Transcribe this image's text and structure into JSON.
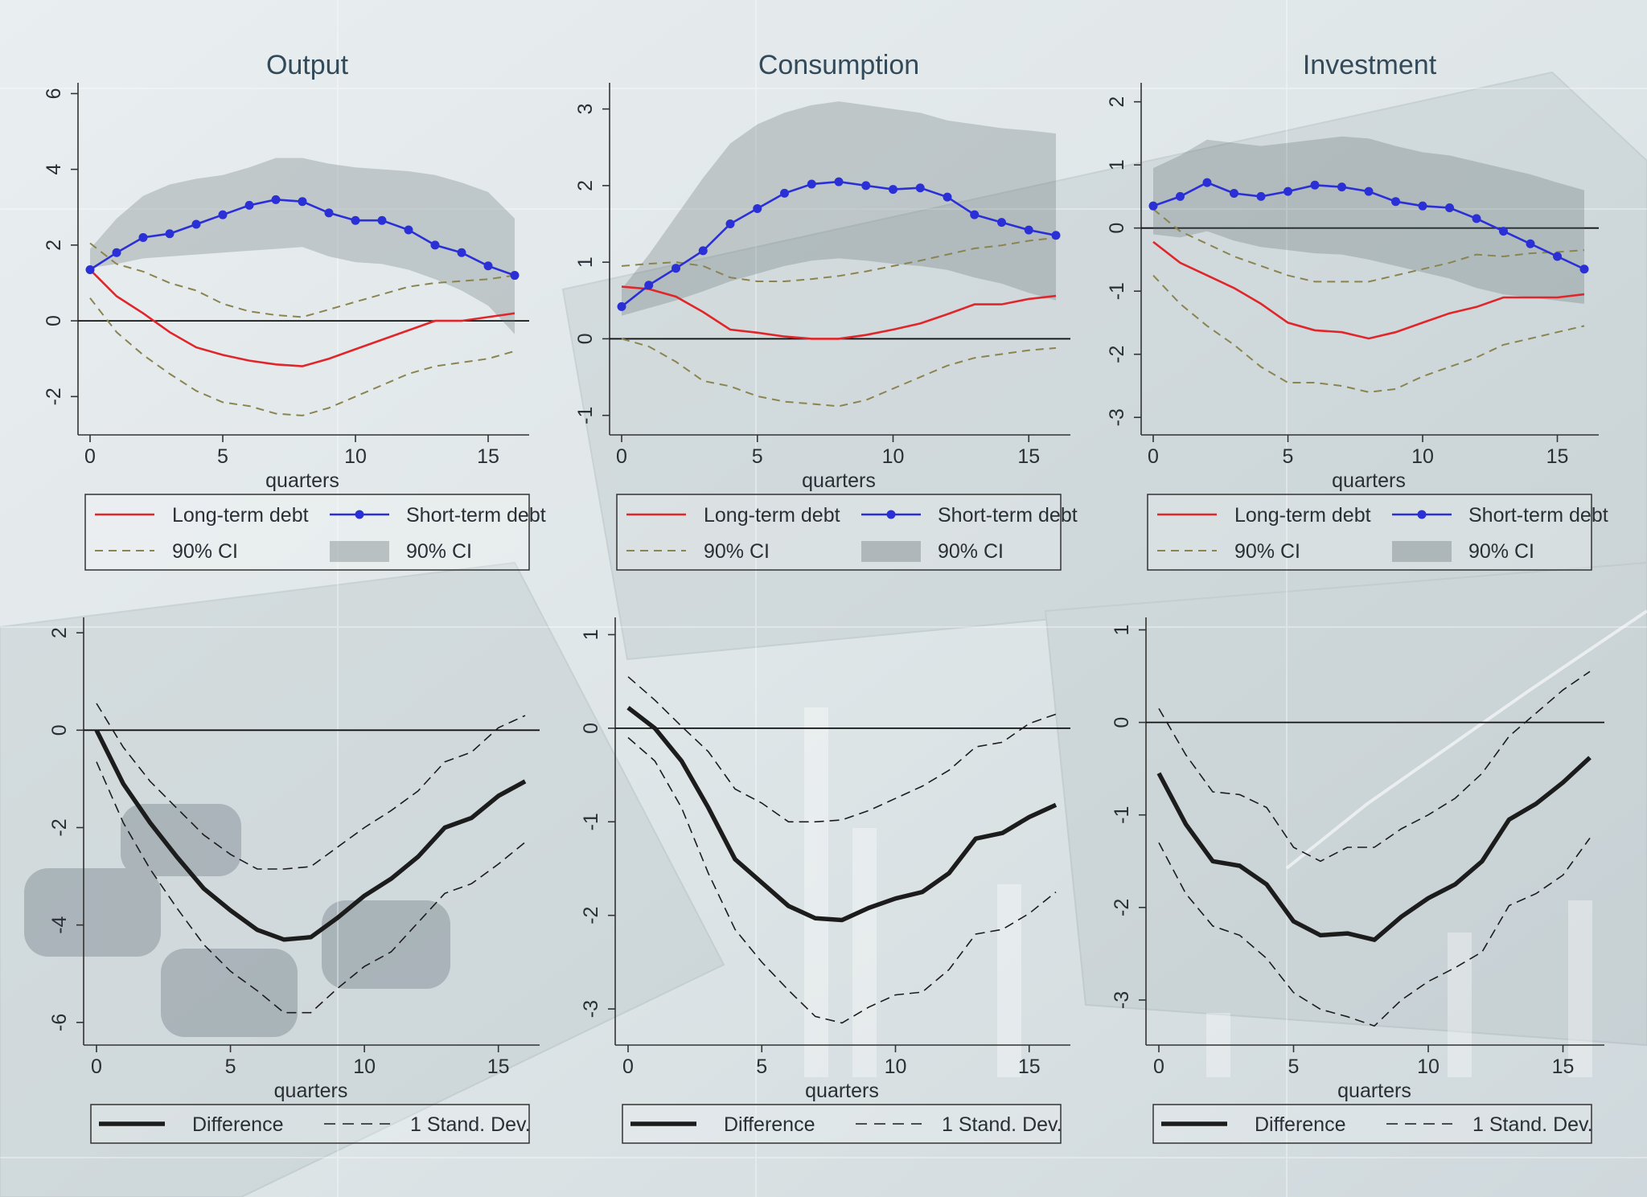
{
  "colors": {
    "long_term": "#e0262a",
    "short_term": "#2a2fd6",
    "ci_line": "#8a8450",
    "band": "#5f6b6e",
    "difference": "#1c1c1c",
    "sd": "#1c1c1c",
    "zero": "#111111"
  },
  "legend_top": {
    "long": "Long-term debt",
    "short": "Short-term debt",
    "ci_line": "90% CI",
    "ci_band": "90% CI"
  },
  "legend_bottom": {
    "diff": "Difference",
    "sd": "1 Stand. Dev."
  },
  "chart_data": [
    {
      "type": "line",
      "panel": "top",
      "title": "Output",
      "xlabel": "quarters",
      "xlim": [
        0,
        16
      ],
      "ylim": [
        -2.8,
        6.2
      ],
      "xticks": [
        0,
        5,
        10,
        15
      ],
      "yticks": [
        -2,
        0,
        2,
        4,
        6
      ],
      "x": [
        0,
        1,
        2,
        3,
        4,
        5,
        6,
        7,
        8,
        9,
        10,
        11,
        12,
        13,
        14,
        15,
        16
      ],
      "series": [
        {
          "name": "Short-term debt",
          "values": [
            1.35,
            1.8,
            2.2,
            2.3,
            2.55,
            2.8,
            3.05,
            3.2,
            3.15,
            2.85,
            2.65,
            2.65,
            2.4,
            2.0,
            1.8,
            1.45,
            1.2
          ]
        },
        {
          "name": "Long-term debt",
          "values": [
            1.35,
            0.65,
            0.2,
            -0.3,
            -0.7,
            -0.9,
            -1.05,
            -1.15,
            -1.2,
            -1.0,
            -0.75,
            -0.5,
            -0.25,
            0.0,
            0.0,
            0.1,
            0.2
          ]
        },
        {
          "name": "90% CI lower",
          "values": [
            0.6,
            -0.3,
            -0.9,
            -1.4,
            -1.85,
            -2.15,
            -2.25,
            -2.45,
            -2.5,
            -2.3,
            -2.0,
            -1.7,
            -1.4,
            -1.2,
            -1.1,
            -1.0,
            -0.8
          ]
        },
        {
          "name": "90% CI upper",
          "values": [
            2.05,
            1.5,
            1.3,
            1.0,
            0.8,
            0.45,
            0.25,
            0.15,
            0.1,
            0.3,
            0.5,
            0.7,
            0.9,
            1.0,
            1.05,
            1.1,
            1.2
          ]
        },
        {
          "name": "Short-term 90% CI band upper",
          "values": [
            1.9,
            2.7,
            3.3,
            3.6,
            3.75,
            3.85,
            4.05,
            4.3,
            4.3,
            4.15,
            4.05,
            4.0,
            3.95,
            3.85,
            3.65,
            3.4,
            2.7
          ]
        },
        {
          "name": "Short-term 90% CI band lower",
          "values": [
            1.4,
            1.5,
            1.65,
            1.7,
            1.75,
            1.8,
            1.85,
            1.9,
            1.95,
            1.7,
            1.55,
            1.5,
            1.35,
            1.1,
            0.8,
            0.4,
            -0.35
          ]
        }
      ]
    },
    {
      "type": "line",
      "panel": "top",
      "title": "Consumption",
      "xlabel": "quarters",
      "xlim": [
        0,
        16
      ],
      "ylim": [
        -1.15,
        3.3
      ],
      "xticks": [
        0,
        5,
        10,
        15
      ],
      "yticks": [
        -1,
        0,
        1,
        2,
        3
      ],
      "x": [
        0,
        1,
        2,
        3,
        4,
        5,
        6,
        7,
        8,
        9,
        10,
        11,
        12,
        13,
        14,
        15,
        16
      ],
      "series": [
        {
          "name": "Short-term debt",
          "values": [
            0.42,
            0.7,
            0.92,
            1.15,
            1.5,
            1.7,
            1.9,
            2.02,
            2.05,
            2.0,
            1.95,
            1.97,
            1.85,
            1.62,
            1.52,
            1.42,
            1.35
          ]
        },
        {
          "name": "Long-term debt",
          "values": [
            0.68,
            0.65,
            0.55,
            0.35,
            0.12,
            0.08,
            0.03,
            0.0,
            0.0,
            0.05,
            0.12,
            0.2,
            0.32,
            0.45,
            0.45,
            0.52,
            0.56
          ]
        },
        {
          "name": "90% CI lower",
          "values": [
            0.0,
            -0.1,
            -0.3,
            -0.55,
            -0.62,
            -0.75,
            -0.82,
            -0.85,
            -0.88,
            -0.8,
            -0.65,
            -0.5,
            -0.35,
            -0.25,
            -0.2,
            -0.15,
            -0.12
          ]
        },
        {
          "name": "90% CI upper",
          "values": [
            0.95,
            0.98,
            1.0,
            0.95,
            0.8,
            0.75,
            0.75,
            0.78,
            0.82,
            0.88,
            0.95,
            1.02,
            1.1,
            1.18,
            1.22,
            1.28,
            1.32
          ]
        },
        {
          "name": "Short-term 90% CI band upper",
          "values": [
            0.65,
            1.1,
            1.6,
            2.1,
            2.55,
            2.8,
            2.95,
            3.05,
            3.1,
            3.05,
            3.0,
            2.95,
            2.85,
            2.8,
            2.75,
            2.72,
            2.68
          ]
        },
        {
          "name": "Short-term 90% CI band lower",
          "values": [
            0.3,
            0.4,
            0.5,
            0.62,
            0.75,
            0.85,
            0.95,
            1.02,
            1.05,
            1.02,
            0.98,
            0.95,
            0.9,
            0.8,
            0.72,
            0.6,
            0.5
          ]
        }
      ]
    },
    {
      "type": "line",
      "panel": "top",
      "title": "Investment",
      "xlabel": "quarters",
      "xlim": [
        0,
        16
      ],
      "ylim": [
        -3.15,
        2.25
      ],
      "xticks": [
        0,
        5,
        10,
        15
      ],
      "yticks": [
        -3,
        -2,
        -1,
        0,
        1,
        2
      ],
      "x": [
        0,
        1,
        2,
        3,
        4,
        5,
        6,
        7,
        8,
        9,
        10,
        11,
        12,
        13,
        14,
        15,
        16
      ],
      "series": [
        {
          "name": "Short-term debt",
          "values": [
            0.35,
            0.5,
            0.72,
            0.55,
            0.5,
            0.58,
            0.68,
            0.65,
            0.58,
            0.42,
            0.35,
            0.32,
            0.15,
            -0.05,
            -0.25,
            -0.45,
            -0.65
          ]
        },
        {
          "name": "Long-term debt",
          "values": [
            -0.22,
            -0.55,
            -0.75,
            -0.95,
            -1.2,
            -1.5,
            -1.62,
            -1.65,
            -1.75,
            -1.65,
            -1.5,
            -1.35,
            -1.25,
            -1.1,
            -1.1,
            -1.1,
            -1.05
          ]
        },
        {
          "name": "90% CI lower",
          "values": [
            -0.75,
            -1.2,
            -1.55,
            -1.85,
            -2.2,
            -2.45,
            -2.45,
            -2.5,
            -2.6,
            -2.55,
            -2.35,
            -2.2,
            -2.05,
            -1.85,
            -1.75,
            -1.65,
            -1.55
          ]
        },
        {
          "name": "90% CI upper",
          "values": [
            0.3,
            -0.05,
            -0.25,
            -0.45,
            -0.6,
            -0.75,
            -0.85,
            -0.85,
            -0.85,
            -0.75,
            -0.65,
            -0.55,
            -0.42,
            -0.45,
            -0.4,
            -0.38,
            -0.35
          ]
        },
        {
          "name": "Short-term 90% CI band upper",
          "values": [
            0.95,
            1.15,
            1.4,
            1.35,
            1.3,
            1.35,
            1.4,
            1.45,
            1.42,
            1.3,
            1.2,
            1.15,
            1.05,
            0.95,
            0.85,
            0.72,
            0.6
          ]
        },
        {
          "name": "Short-term 90% CI band lower",
          "values": [
            -0.1,
            -0.15,
            -0.05,
            -0.2,
            -0.3,
            -0.35,
            -0.4,
            -0.42,
            -0.5,
            -0.6,
            -0.7,
            -0.8,
            -0.95,
            -1.05,
            -1.1,
            -1.15,
            -1.2
          ]
        }
      ]
    },
    {
      "type": "line",
      "panel": "bottom",
      "title": "",
      "xlabel": "quarters",
      "xlim": [
        0,
        16
      ],
      "ylim": [
        -6.3,
        2.25
      ],
      "xticks": [
        0,
        5,
        10,
        15
      ],
      "yticks": [
        -6,
        -4,
        -2,
        0,
        2
      ],
      "x": [
        0,
        1,
        2,
        3,
        4,
        5,
        6,
        7,
        8,
        9,
        10,
        11,
        12,
        13,
        14,
        15,
        16
      ],
      "series": [
        {
          "name": "Difference",
          "values": [
            0.0,
            -1.1,
            -1.9,
            -2.6,
            -3.25,
            -3.7,
            -4.1,
            -4.3,
            -4.25,
            -3.85,
            -3.4,
            -3.05,
            -2.6,
            -2.0,
            -1.8,
            -1.35,
            -1.05
          ]
        },
        {
          "name": "1 Stand. Dev. upper",
          "values": [
            0.55,
            -0.35,
            -1.05,
            -1.6,
            -2.15,
            -2.55,
            -2.85,
            -2.85,
            -2.8,
            -2.4,
            -2.0,
            -1.65,
            -1.25,
            -0.65,
            -0.45,
            0.05,
            0.3
          ]
        },
        {
          "name": "1 Stand. Dev. lower",
          "values": [
            -0.65,
            -1.9,
            -2.85,
            -3.65,
            -4.4,
            -4.95,
            -5.35,
            -5.8,
            -5.8,
            -5.3,
            -4.85,
            -4.55,
            -3.95,
            -3.35,
            -3.15,
            -2.75,
            -2.3
          ]
        }
      ]
    },
    {
      "type": "line",
      "panel": "bottom",
      "title": "",
      "xlabel": "quarters",
      "xlim": [
        0,
        16
      ],
      "ylim": [
        -3.3,
        1.15
      ],
      "xticks": [
        0,
        5,
        10,
        15
      ],
      "yticks": [
        -3,
        -2,
        -1,
        0,
        1
      ],
      "x": [
        0,
        1,
        2,
        3,
        4,
        5,
        6,
        7,
        8,
        9,
        10,
        11,
        12,
        13,
        14,
        15,
        16
      ],
      "series": [
        {
          "name": "Difference",
          "values": [
            0.22,
            0.0,
            -0.35,
            -0.85,
            -1.4,
            -1.65,
            -1.9,
            -2.03,
            -2.05,
            -1.92,
            -1.82,
            -1.75,
            -1.55,
            -1.18,
            -1.12,
            -0.95,
            -0.82
          ]
        },
        {
          "name": "1 Stand. Dev. upper",
          "values": [
            0.55,
            0.3,
            0.02,
            -0.25,
            -0.65,
            -0.8,
            -1.0,
            -1.0,
            -0.98,
            -0.88,
            -0.75,
            -0.62,
            -0.45,
            -0.2,
            -0.15,
            0.05,
            0.15
          ]
        },
        {
          "name": "1 Stand. Dev. lower",
          "values": [
            -0.1,
            -0.35,
            -0.85,
            -1.55,
            -2.15,
            -2.5,
            -2.8,
            -3.08,
            -3.15,
            -2.98,
            -2.85,
            -2.82,
            -2.58,
            -2.2,
            -2.15,
            -1.98,
            -1.75
          ]
        }
      ]
    },
    {
      "type": "line",
      "panel": "bottom",
      "title": "",
      "xlabel": "quarters",
      "xlim": [
        0,
        16
      ],
      "ylim": [
        -3.4,
        1.1
      ],
      "xticks": [
        0,
        5,
        10,
        15
      ],
      "yticks": [
        -3,
        -2,
        -1,
        0,
        1
      ],
      "x": [
        0,
        1,
        2,
        3,
        4,
        5,
        6,
        7,
        8,
        9,
        10,
        11,
        12,
        13,
        14,
        15,
        16
      ],
      "series": [
        {
          "name": "Difference",
          "values": [
            -0.55,
            -1.1,
            -1.5,
            -1.55,
            -1.75,
            -2.15,
            -2.3,
            -2.28,
            -2.35,
            -2.1,
            -1.9,
            -1.75,
            -1.5,
            -1.05,
            -0.88,
            -0.65,
            -0.38
          ]
        },
        {
          "name": "1 Stand. Dev. upper",
          "values": [
            0.15,
            -0.35,
            -0.75,
            -0.78,
            -0.92,
            -1.35,
            -1.5,
            -1.35,
            -1.35,
            -1.15,
            -1.0,
            -0.82,
            -0.55,
            -0.15,
            0.1,
            0.35,
            0.55
          ]
        },
        {
          "name": "1 Stand. Dev. lower",
          "values": [
            -1.3,
            -1.85,
            -2.2,
            -2.3,
            -2.55,
            -2.92,
            -3.1,
            -3.18,
            -3.28,
            -3.0,
            -2.8,
            -2.65,
            -2.48,
            -1.98,
            -1.85,
            -1.65,
            -1.25
          ]
        }
      ]
    }
  ]
}
